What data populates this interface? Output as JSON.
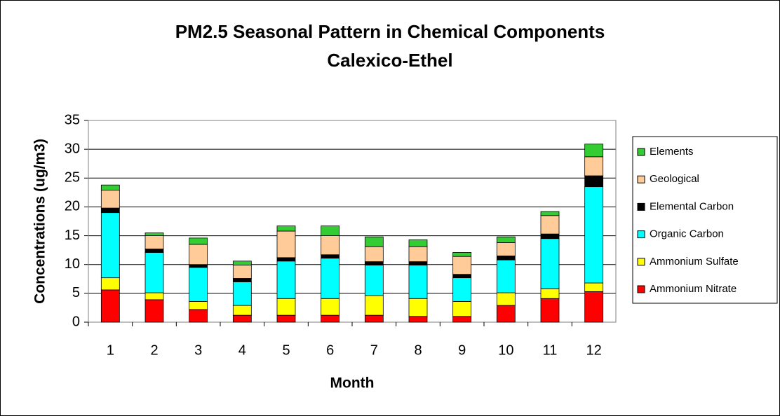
{
  "chart_data": {
    "type": "stacked_bar",
    "title": "PM2.5 Seasonal Pattern in Chemical Components",
    "subtitle": "Calexico-Ethel",
    "x_label": "Month",
    "y_label": "Concentrations (ug/m3)",
    "categories": [
      "1",
      "2",
      "3",
      "4",
      "5",
      "6",
      "7",
      "8",
      "9",
      "10",
      "11",
      "12"
    ],
    "series": [
      {
        "name": "Ammonium Nitrate",
        "color": "#ff0000",
        "values": [
          5.6,
          3.9,
          2.2,
          1.2,
          1.2,
          1.2,
          1.2,
          1.0,
          1.0,
          2.9,
          4.1,
          5.3
        ]
      },
      {
        "name": "Ammonium Sulfate",
        "color": "#ffff00",
        "values": [
          2.1,
          1.2,
          1.4,
          1.7,
          2.9,
          2.9,
          3.4,
          3.1,
          2.6,
          2.2,
          1.7,
          1.5
        ]
      },
      {
        "name": "Organic Carbon",
        "color": "#00ffff",
        "values": [
          11.3,
          7.0,
          5.9,
          4.1,
          6.5,
          7.0,
          5.3,
          5.8,
          4.1,
          5.7,
          8.7,
          16.7
        ]
      },
      {
        "name": "Elemental Carbon",
        "color": "#000000",
        "values": [
          0.8,
          0.6,
          0.5,
          0.6,
          0.6,
          0.6,
          0.6,
          0.6,
          0.6,
          0.7,
          0.8,
          1.9
        ]
      },
      {
        "name": "Geological",
        "color": "#ffcc99",
        "values": [
          3.1,
          2.3,
          3.5,
          2.3,
          4.6,
          3.3,
          2.6,
          2.6,
          3.1,
          2.3,
          3.2,
          3.3
        ]
      },
      {
        "name": "Elements",
        "color": "#33cc33",
        "values": [
          0.9,
          0.5,
          1.1,
          0.7,
          0.9,
          1.7,
          1.7,
          1.2,
          0.7,
          1.0,
          0.7,
          2.2
        ]
      }
    ],
    "ylim": [
      0,
      35
    ],
    "yticks": [
      0,
      5,
      10,
      15,
      20,
      25,
      30,
      35
    ],
    "grid": true,
    "legend": "right"
  }
}
